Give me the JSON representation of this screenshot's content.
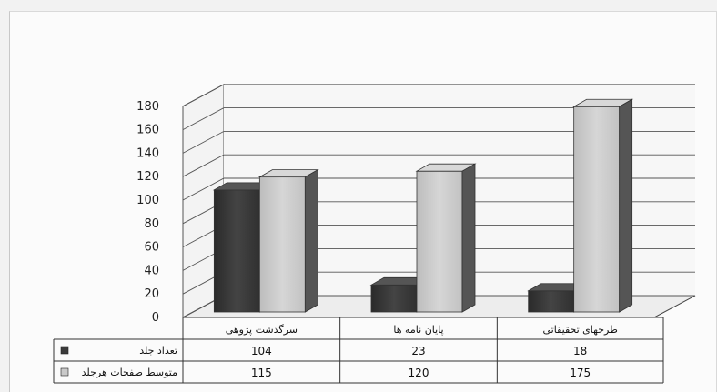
{
  "chart_data": {
    "type": "bar",
    "title": "",
    "xlabel": "",
    "ylabel": "",
    "ylim": [
      0,
      180
    ],
    "yticks": [
      0,
      20,
      40,
      60,
      80,
      100,
      120,
      140,
      160,
      180
    ],
    "grid": true,
    "style": "3d-clustered-column-with-data-table",
    "categories": [
      "سرگذشت پژوهی",
      "پایان نامه ها",
      "طرحهای تحقیقاتی"
    ],
    "series": [
      {
        "name": "تعداد جلد",
        "values": [
          104,
          23,
          18
        ],
        "color": "#3a3a3a"
      },
      {
        "name": "متوسط صفحات هرجلد",
        "values": [
          115,
          120,
          175
        ],
        "color": "#c9c9c9"
      }
    ],
    "data_table": true,
    "legend": "in data table, left"
  }
}
